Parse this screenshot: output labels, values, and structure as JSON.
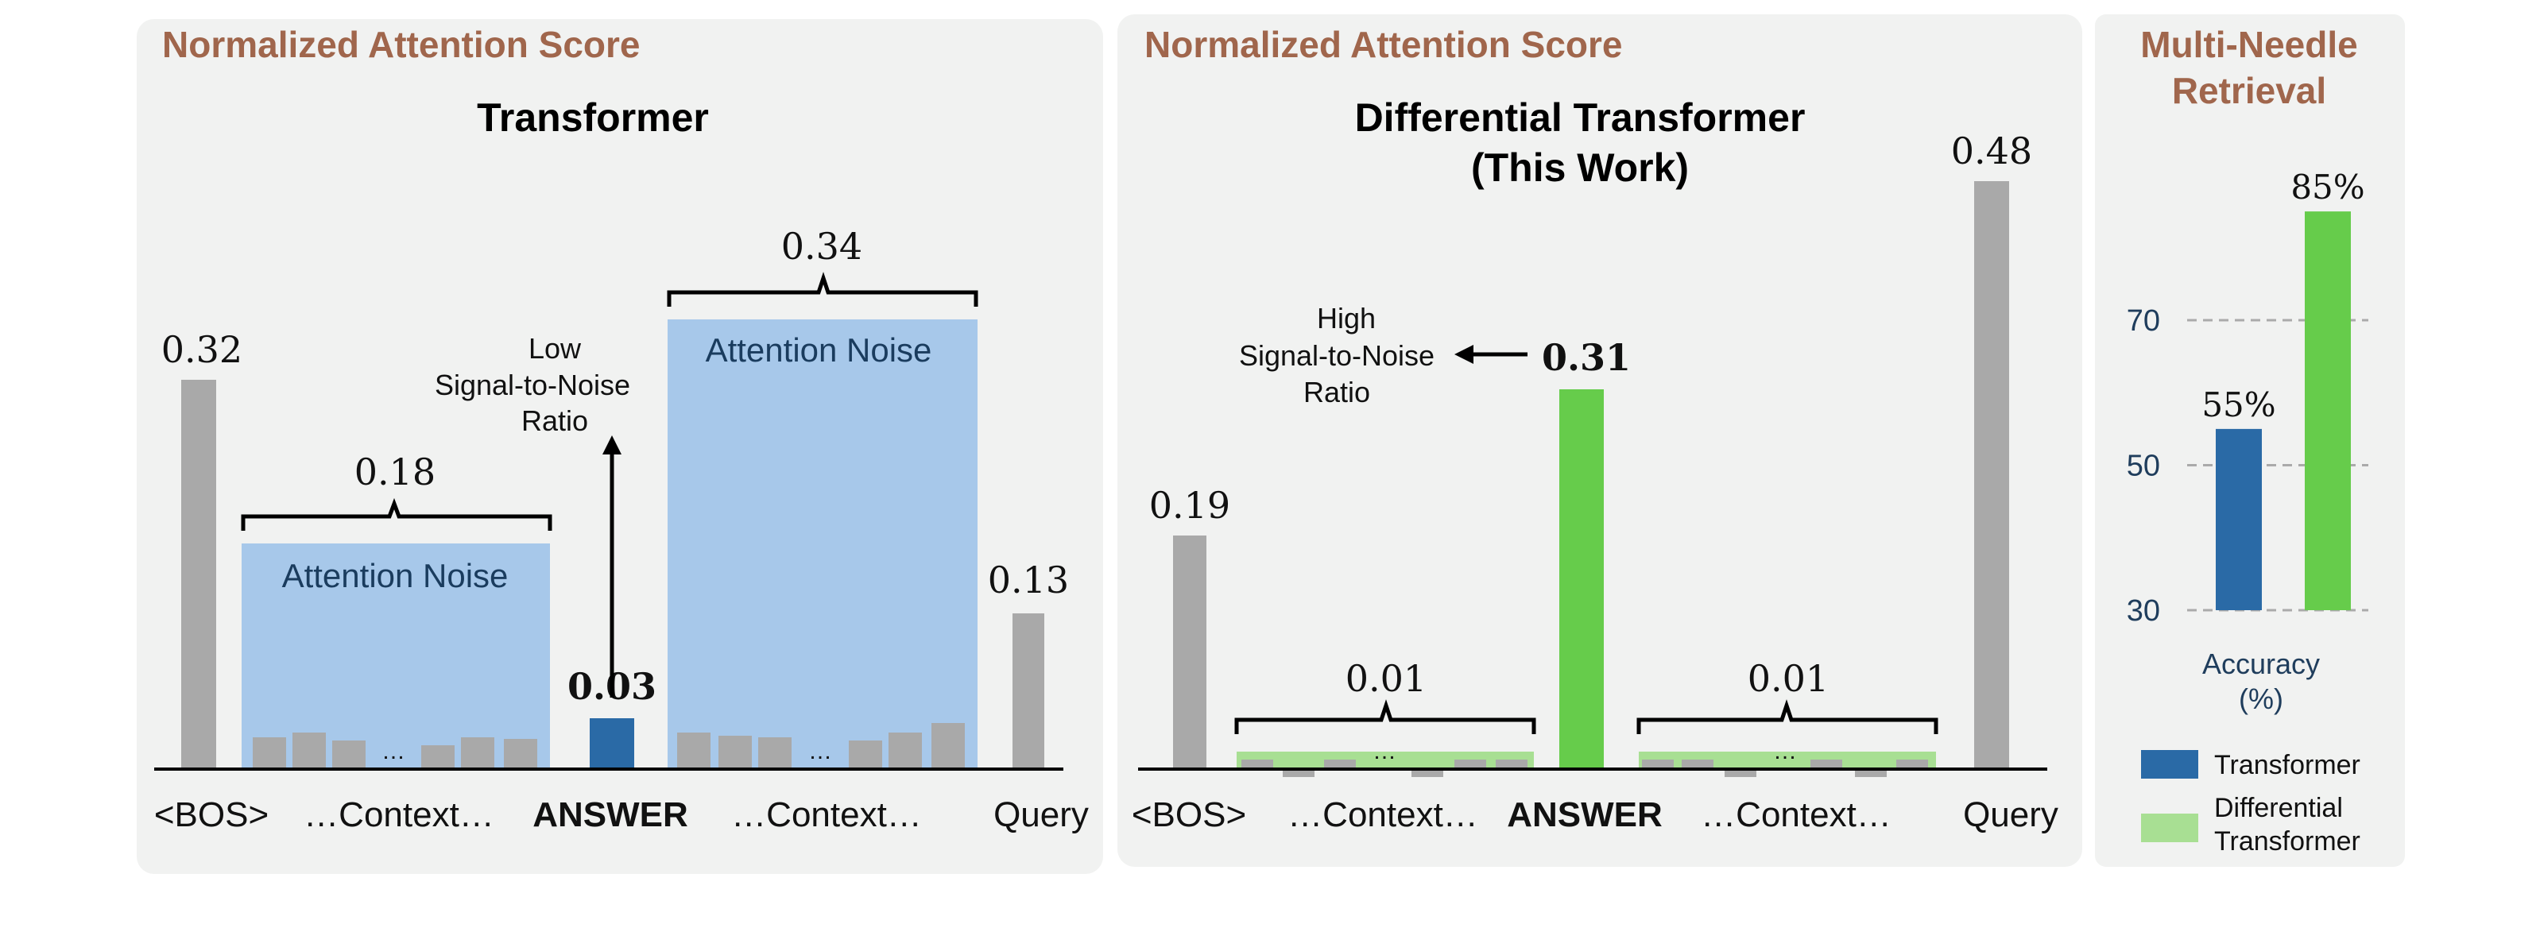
{
  "colors": {
    "panel_bg": "#f1f2f1",
    "header": "#a0664c",
    "gray_bar": "#a9a9a9",
    "noise_fill": "#a7c8ea",
    "noise_text": "#1a3c5e",
    "answer_transformer": "#2a6aa6",
    "answer_diff": "#66cc4b",
    "diff_context": "#a8df93",
    "transformer_legend": "#2a6aa6",
    "diff_legend": "#a8df93",
    "acc_transformer": "#2a6aa6",
    "acc_diff": "#66cc4b",
    "axis_text": "#1f3d5c",
    "grid": "#aaaaaa"
  },
  "panels": {
    "left": {
      "header": "Normalized Attention Score",
      "title": "Transformer",
      "annotation": [
        "Low",
        "Signal-to-Noise",
        "Ratio"
      ],
      "noise_label": "Attention Noise",
      "ellipsis": "…"
    },
    "middle": {
      "header": "Normalized Attention Score",
      "title": [
        "Differential Transformer",
        "(This Work)"
      ],
      "annotation": [
        "High",
        "Signal-to-Noise",
        "Ratio"
      ],
      "ellipsis": "…"
    },
    "right": {
      "header": [
        "Multi-Needle",
        "Retrieval"
      ],
      "ylabel": [
        "Accuracy",
        "(%)"
      ],
      "legend": [
        "Transformer",
        [
          "Differential",
          "Transformer"
        ]
      ]
    }
  },
  "chart_data": [
    {
      "type": "bar",
      "title": "Transformer",
      "categories": [
        "<BOS>",
        "…Context…",
        "ANSWER",
        "…Context…",
        "Query"
      ],
      "values": [
        0.32,
        0.18,
        0.03,
        0.34,
        0.13
      ],
      "value_labels": [
        "0.32",
        "0.18",
        "0.03",
        "0.34",
        "0.13"
      ],
      "region_labels": [
        "Attention Noise",
        "Attention Noise"
      ]
    },
    {
      "type": "bar",
      "title": "Differential Transformer (This Work)",
      "categories": [
        "<BOS>",
        "…Context…",
        "ANSWER",
        "…Context…",
        "Query"
      ],
      "values": [
        0.19,
        0.01,
        0.31,
        0.01,
        0.48
      ],
      "value_labels": [
        "0.19",
        "0.01",
        "0.31",
        "0.01",
        "0.48"
      ]
    },
    {
      "type": "bar",
      "title": "Multi-Needle Retrieval",
      "ylabel": "Accuracy (%)",
      "series": [
        {
          "name": "Transformer",
          "values": [
            55
          ]
        },
        {
          "name": "Differential Transformer",
          "values": [
            85
          ]
        }
      ],
      "value_labels": [
        "55%",
        "85%"
      ],
      "ylim": [
        30,
        90
      ],
      "yticks": [
        30,
        50,
        70
      ],
      "grid": "dashed"
    }
  ]
}
